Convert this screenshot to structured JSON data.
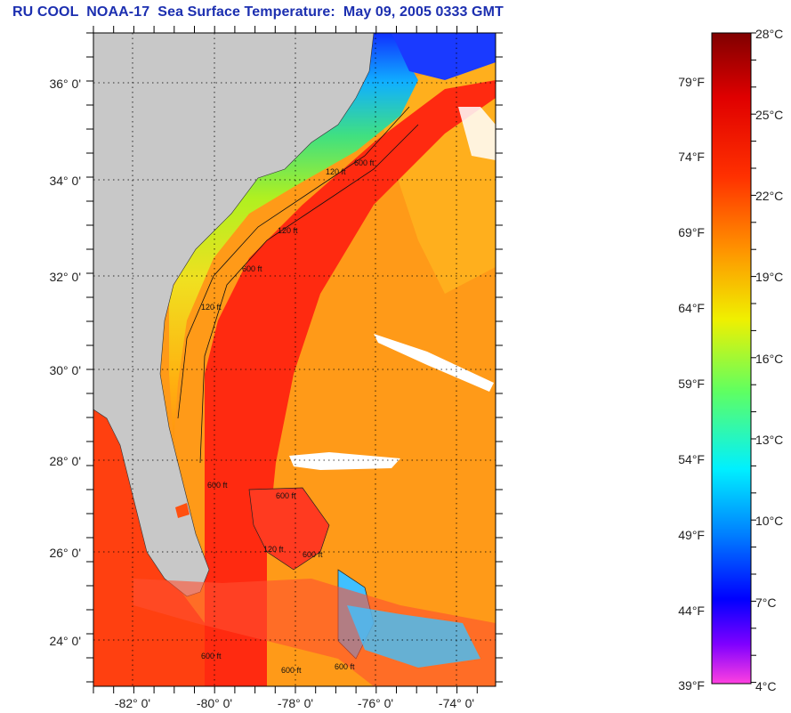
{
  "title": "RU COOL  NOAA-17  Sea Surface Temperature:  May 09, 2005 0333 GMT",
  "map": {
    "lat_labels": [
      "36° 0'",
      "34° 0'",
      "32° 0'",
      "30° 0'",
      "28° 0'",
      "26° 0'",
      "24° 0'"
    ],
    "lon_labels": [
      "-82° 0'",
      "-80° 0'",
      "-78° 0'",
      "-76° 0'",
      "-74° 0'"
    ],
    "contour_labels": [
      "120 ft",
      "600 ft",
      "120 ft",
      "600 ft",
      "120 ft",
      "600 ft",
      "600 ft",
      "120 ft",
      "600 ft",
      "600 ft",
      "600 ft",
      "600 ft"
    ],
    "colors": {
      "land": "#c8c8c8",
      "gulf_stream": "#ff2a10",
      "offshore": "#ff8c10",
      "shelf_north": "#2060ff",
      "shelf_mid": "#40e060",
      "shelf_south": "#f0d020",
      "cloud": "#ffffff"
    }
  },
  "colorbar": {
    "f_labels": [
      "79°F",
      "74°F",
      "69°F",
      "64°F",
      "59°F",
      "54°F",
      "49°F",
      "44°F",
      "39°F"
    ],
    "c_labels": [
      "28°C",
      "25°C",
      "22°C",
      "19°C",
      "16°C",
      "13°C",
      "10°C",
      "7°C",
      "4°C"
    ],
    "range_c": [
      4,
      28
    ],
    "colors": [
      "#800000",
      "#ff0000",
      "#ff8000",
      "#ffff00",
      "#00ff80",
      "#00ffff",
      "#0080ff",
      "#0000ff",
      "#8000ff",
      "#ff40ff"
    ]
  }
}
